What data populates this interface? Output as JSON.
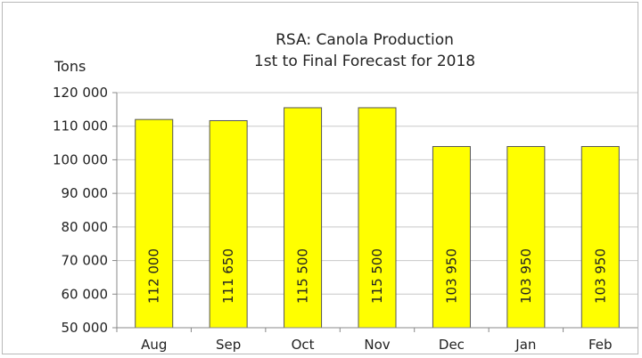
{
  "chart_data": {
    "type": "bar",
    "title": "RSA: Canola Production",
    "subtitle": "1st to Final Forecast for 2018",
    "ylabel": "Tons",
    "xlabel": "",
    "categories": [
      "Aug",
      "Sep",
      "Oct",
      "Nov",
      "Dec",
      "Jan",
      "Feb"
    ],
    "values": [
      112000,
      111650,
      115500,
      115500,
      103950,
      103950,
      103950
    ],
    "value_labels": [
      "112 000",
      "111 650",
      "115 500",
      "115 500",
      "103 950",
      "103 950",
      "103 950"
    ],
    "ylim": [
      50000,
      120000
    ],
    "yticks": [
      50000,
      60000,
      70000,
      80000,
      90000,
      100000,
      110000,
      120000
    ],
    "ytick_labels": [
      "50 000",
      "60 000",
      "70 000",
      "80 000",
      "90 000",
      "100 000",
      "110 000",
      "120 000"
    ],
    "grid": true,
    "legend": "none",
    "colors": {
      "bar_fill": "#ffff00",
      "bar_stroke": "#555555",
      "grid": "#c8c8c8",
      "axis": "#888888"
    }
  }
}
